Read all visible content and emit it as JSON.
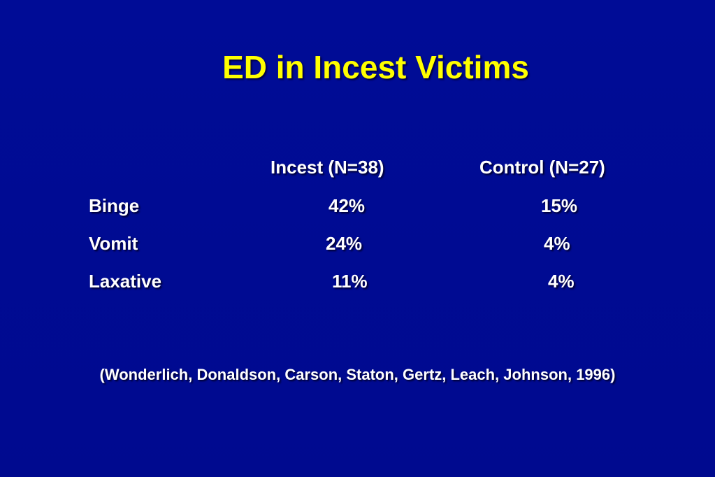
{
  "slide": {
    "title": "ED in Incest Victims",
    "columns": {
      "incest": "Incest (N=38)",
      "control": "Control (N=27)"
    },
    "rows": [
      {
        "label": "Binge",
        "incest": "42%",
        "control": "15%"
      },
      {
        "label": "Vomit",
        "incest": "24%",
        "control": "4%"
      },
      {
        "label": "Laxative",
        "incest": "11%",
        "control": "4%"
      }
    ],
    "citation": "(Wonderlich, Donaldson, Carson, Staton, Gertz, Leach, Johnson, 1996)"
  },
  "colors": {
    "background": "#000b94",
    "title": "#ffff00",
    "text": "#ffffff"
  }
}
